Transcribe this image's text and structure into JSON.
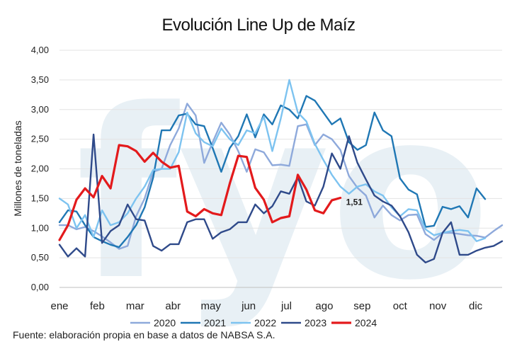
{
  "chart_data": {
    "type": "line",
    "title": "Evolución Line Up de Maíz",
    "ylabel": "Millones de toneladas",
    "xlabel": "",
    "source": "Fuente: elaboración propia en base a datos de NABSA S.A.",
    "ylim": [
      0,
      4
    ],
    "yticks": [
      "0,00",
      "0,50",
      "1,00",
      "1,50",
      "2,00",
      "2,50",
      "3,00",
      "3,50",
      "4,00"
    ],
    "month_labels": [
      "ene",
      "feb",
      "mar",
      "abr",
      "may",
      "jun",
      "jul",
      "ago",
      "sep",
      "oct",
      "nov",
      "dic"
    ],
    "weeks": 53,
    "grid": true,
    "legend_position": "bottom",
    "annotation": "1,51",
    "watermark": "fyo",
    "series": [
      {
        "name": "2020",
        "color": "#8EA9DB",
        "values": [
          1.05,
          1.05,
          0.98,
          1.02,
          0.95,
          0.86,
          0.76,
          0.65,
          0.7,
          1.2,
          1.5,
          1.95,
          2.0,
          2.4,
          2.68,
          3.1,
          2.9,
          2.1,
          2.45,
          2.78,
          2.58,
          2.3,
          1.95,
          2.33,
          2.28,
          2.06,
          2.07,
          2.05,
          2.72,
          2.75,
          2.4,
          2.58,
          2.5,
          2.32,
          1.88,
          1.68,
          1.55,
          1.18,
          1.38,
          1.22,
          1.13,
          1.22,
          1.23,
          0.9,
          0.8,
          0.92,
          0.92,
          0.9,
          0.88,
          0.87,
          0.84,
          0.95,
          1.05
        ]
      },
      {
        "name": "2021",
        "color": "#1F77B4",
        "values": [
          1.1,
          1.3,
          1.28,
          1.05,
          0.85,
          0.78,
          0.72,
          0.68,
          0.85,
          1.05,
          1.35,
          1.85,
          2.65,
          2.65,
          2.9,
          2.93,
          2.75,
          2.72,
          2.35,
          1.95,
          2.35,
          2.55,
          2.92,
          2.53,
          2.92,
          2.75,
          3.07,
          3.0,
          2.85,
          3.23,
          3.15,
          2.95,
          2.75,
          2.85,
          2.45,
          2.32,
          2.4,
          2.95,
          2.65,
          2.55,
          1.84,
          1.65,
          1.57,
          1.02,
          1.04,
          1.36,
          1.32,
          1.37,
          1.18,
          1.67,
          1.49
        ]
      },
      {
        "name": "2022",
        "color": "#7DC3F0",
        "values": [
          1.5,
          1.4,
          1.0,
          1.22,
          0.85,
          1.3,
          1.05,
          1.1,
          1.25,
          1.5,
          1.7,
          1.98,
          2.0,
          2.0,
          2.28,
          2.95,
          2.6,
          2.45,
          2.38,
          2.68,
          2.5,
          2.4,
          2.65,
          2.6,
          2.88,
          2.3,
          2.85,
          3.5,
          2.95,
          2.8,
          2.42,
          2.15,
          1.9,
          1.7,
          1.58,
          1.7,
          1.74,
          1.62,
          1.55,
          1.35,
          1.2,
          1.32,
          1.3,
          0.98,
          0.88,
          0.92,
          0.95,
          0.97,
          0.95,
          0.78,
          0.83
        ]
      },
      {
        "name": "2023",
        "color": "#2F4A8A",
        "values": [
          0.72,
          0.52,
          0.66,
          0.52,
          2.58,
          0.75,
          0.95,
          1.05,
          1.4,
          1.15,
          1.13,
          0.7,
          0.62,
          0.73,
          0.73,
          1.1,
          1.15,
          1.15,
          0.82,
          0.93,
          0.98,
          1.1,
          1.1,
          1.4,
          1.25,
          1.37,
          1.62,
          1.58,
          1.86,
          1.45,
          1.38,
          1.7,
          2.26,
          2.0,
          2.55,
          2.1,
          1.82,
          1.55,
          1.45,
          1.38,
          1.2,
          0.93,
          0.55,
          0.42,
          0.48,
          0.92,
          1.1,
          0.55,
          0.55,
          0.62,
          0.67,
          0.7,
          0.78
        ]
      },
      {
        "name": "2024",
        "color": "#E31A1C",
        "values": [
          0.8,
          1.05,
          1.48,
          1.67,
          1.52,
          1.88,
          1.67,
          2.4,
          2.38,
          2.3,
          2.12,
          2.27,
          2.12,
          2.02,
          2.05,
          1.28,
          1.2,
          1.32,
          1.25,
          1.22,
          1.75,
          2.22,
          2.2,
          1.68,
          1.48,
          1.1,
          1.17,
          1.2,
          1.9,
          1.65,
          1.3,
          1.25,
          1.47,
          1.51
        ]
      }
    ]
  }
}
